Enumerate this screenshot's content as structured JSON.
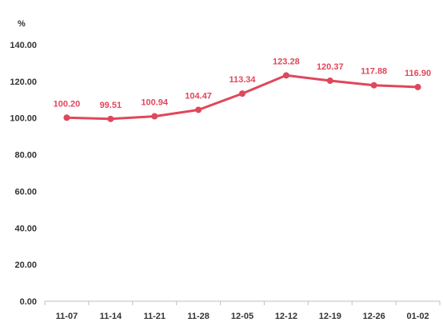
{
  "chart_data": {
    "type": "line",
    "ylabel": "%",
    "categories": [
      "11-07",
      "11-14",
      "11-21",
      "11-28",
      "12-05",
      "12-12",
      "12-19",
      "12-26",
      "01-02"
    ],
    "series": [
      {
        "values": [
          100.2,
          99.51,
          100.94,
          104.47,
          113.34,
          123.28,
          120.37,
          117.88,
          116.9
        ],
        "labels": [
          "100.20",
          "99.51",
          "100.94",
          "104.47",
          "113.34",
          "123.28",
          "120.37",
          "117.88",
          "116.90"
        ],
        "color": "#e0475b"
      }
    ],
    "ylim": [
      0,
      140
    ],
    "yticks": [
      "0.00",
      "20.00",
      "40.00",
      "60.00",
      "80.00",
      "100.00",
      "120.00",
      "140.00"
    ],
    "grid": false,
    "legend": "none"
  }
}
